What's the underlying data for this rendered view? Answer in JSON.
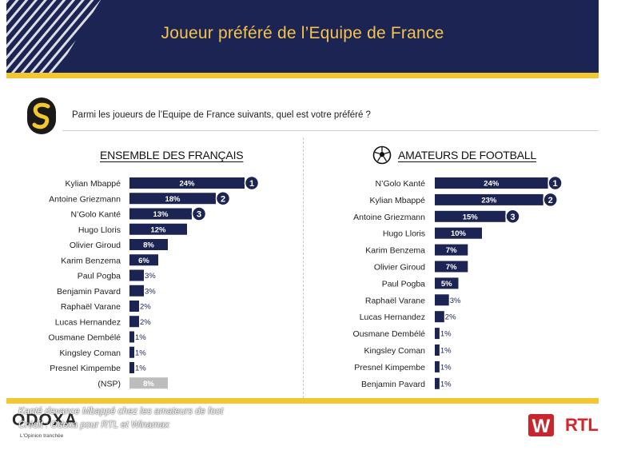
{
  "header": {
    "title": "Joueur préféré de l’Equipe de France"
  },
  "question": "Parmi les joueurs de l’Equipe de France suivants, quel est votre préféré ?",
  "colors": {
    "banner": "#1c2453",
    "gold": "#f4c730",
    "bar": "#1c2453",
    "bar_nsp": "#bdbdbd",
    "rtl": "#d7262b",
    "winamax": "#c8262e"
  },
  "icons": {
    "survey": "odoxa-swirl-badge-icon",
    "football": "football-icon"
  },
  "chart_data": [
    {
      "type": "bar",
      "orientation": "horizontal",
      "title": "ENSEMBLE DES FRANÇAIS",
      "categories": [
        "Kylian Mbappé",
        "Antoine Griezmann",
        "N’Golo Kanté",
        "Hugo Lloris",
        "Olivier Giroud",
        "Karim Benzema",
        "Paul Pogba",
        "Benjamin Pavard",
        "Raphaël Varane",
        "Lucas Hernandez",
        "Ousmane Dembélé",
        "Kingsley Coman",
        "Presnel Kimpembe",
        "(NSP)"
      ],
      "values": [
        24,
        18,
        13,
        12,
        8,
        6,
        3,
        3,
        2,
        2,
        1,
        1,
        1,
        8
      ],
      "value_labels": [
        "24%",
        "18%",
        "13%",
        "12%",
        "8%",
        "6%",
        "3%",
        "3%",
        "2%",
        "2%",
        "1%",
        "1%",
        "1%",
        "8%"
      ],
      "ranks": [
        "1",
        "2",
        "3"
      ],
      "unit": "%"
    },
    {
      "type": "bar",
      "orientation": "horizontal",
      "title": "AMATEURS DE FOOTBALL",
      "categories": [
        "N’Golo Kanté",
        "Kylian Mbappé",
        "Antoine Griezmann",
        "Hugo Lloris",
        "Karim Benzema",
        "Olivier Giroud",
        "Paul Pogba",
        "Raphaël Varane",
        "Lucas Hernandez",
        "Ousmane Dembélé",
        "Kingsley Coman",
        "Presnel Kimpembe",
        "Benjamin Pavard"
      ],
      "values": [
        24,
        23,
        15,
        10,
        7,
        7,
        5,
        3,
        2,
        1,
        1,
        1,
        1
      ],
      "value_labels": [
        "24%",
        "23%",
        "15%",
        "10%",
        "7%",
        "7%",
        "5%",
        "3%",
        "2%",
        "1%",
        "1%",
        "1%",
        "1%"
      ],
      "ranks": [
        "1",
        "2",
        "3"
      ],
      "unit": "%"
    }
  ],
  "caption": {
    "line1": "Kanté devance Mbappé chez les amateurs de foot",
    "line2": "Crédit : Odoxa pour RTL et Winamax"
  },
  "footer": {
    "odoxa_logo_text": "ODOXA",
    "odoxa_tagline": "L'Opinion tranchée",
    "winamax_logo_text": "W",
    "rtl_logo_text": "RTL"
  }
}
